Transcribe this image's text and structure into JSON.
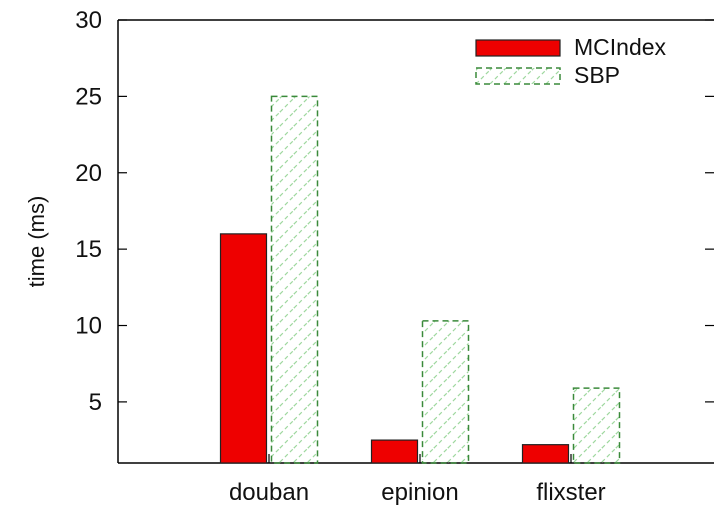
{
  "chart_data": {
    "type": "bar",
    "title": "",
    "xlabel": "",
    "ylabel": "time (ms)",
    "categories": [
      "douban",
      "epinion",
      "flixster"
    ],
    "series": [
      {
        "name": "MCIndex",
        "values": [
          16.0,
          2.5,
          2.2
        ],
        "color": "#ee0000",
        "style": "solid"
      },
      {
        "name": "SBP",
        "values": [
          25.0,
          10.3,
          5.9
        ],
        "color": "#3a8a3a",
        "style": "hatched-dashed"
      }
    ],
    "ylim": [
      1,
      30
    ],
    "yticks": [
      5,
      10,
      15,
      20,
      25,
      30
    ],
    "ytick_labels": [
      "5",
      "10",
      "15",
      "20",
      "25",
      "30"
    ],
    "grid": false,
    "legend_position": "top-right"
  }
}
